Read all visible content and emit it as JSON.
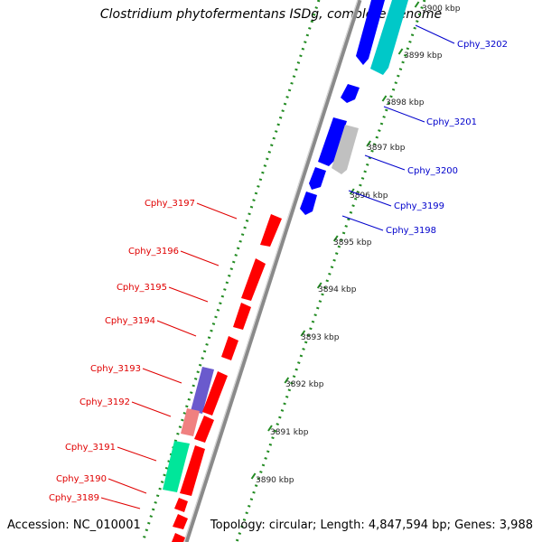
{
  "title": "Clostridium phytofermentans ISDg, complete genome",
  "footer": {
    "accession": "Accession: NC_010001",
    "summary": "Topology: circular; Length: 4,847,594 bp; Genes: 3,988"
  },
  "ticks": [
    "3900 kbp",
    "3899 kbp",
    "3898 kbp",
    "3897 kbp",
    "3896 kbp",
    "3895 kbp",
    "3894 kbp",
    "3893 kbp",
    "3892 kbp",
    "3891 kbp",
    "3890 kbp"
  ],
  "genes_forward": [
    {
      "name": "Cphy_3202",
      "color": "#0000ff"
    },
    {
      "name": "Cphy_3201",
      "color": "#0000ff"
    },
    {
      "name": "Cphy_3200",
      "color": "#0000ff"
    },
    {
      "name": "Cphy_3199",
      "color": "#0000ff"
    },
    {
      "name": "Cphy_3198",
      "color": "#0000ff"
    }
  ],
  "genes_reverse": [
    {
      "name": "Cphy_3197",
      "color": "#ff0000"
    },
    {
      "name": "Cphy_3196",
      "color": "#ff0000"
    },
    {
      "name": "Cphy_3195",
      "color": "#ff0000"
    },
    {
      "name": "Cphy_3194",
      "color": "#ff0000"
    },
    {
      "name": "Cphy_3193",
      "color": "#ff0000"
    },
    {
      "name": "Cphy_3192",
      "color": "#ff0000"
    },
    {
      "name": "Cphy_3191",
      "color": "#ff0000"
    },
    {
      "name": "Cphy_3190",
      "color": "#ff0000"
    },
    {
      "name": "Cphy_3189",
      "color": "#ff0000"
    }
  ],
  "colors": {
    "forward_cds": "#0000ff",
    "reverse_cds": "#ff0000",
    "cyan_feature": "#00cccc",
    "grey_feature": "#c0c0c0",
    "purple_feature": "#6a5acd",
    "pink_feature": "#f08080",
    "green_feature": "#00e69a",
    "backbone": "#808080",
    "gc_dots": "#228b22"
  }
}
